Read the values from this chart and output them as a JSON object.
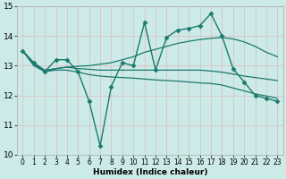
{
  "xlabel": "Humidex (Indice chaleur)",
  "xlim": [
    -0.5,
    23.5
  ],
  "ylim": [
    10,
    15
  ],
  "xticks": [
    0,
    1,
    2,
    3,
    4,
    5,
    6,
    7,
    8,
    9,
    10,
    11,
    12,
    13,
    14,
    15,
    16,
    17,
    18,
    19,
    20,
    21,
    22,
    23
  ],
  "yticks": [
    10,
    11,
    12,
    13,
    14,
    15
  ],
  "bg_color": "#cceae8",
  "grid_color": "#ddbcbc",
  "line_color": "#1a7a6e",
  "lines": [
    {
      "x": [
        0,
        1,
        2,
        3,
        4,
        5,
        6,
        7,
        8,
        9,
        10,
        11,
        12,
        13,
        14,
        15,
        16,
        17,
        18,
        19,
        20,
        21,
        22,
        23
      ],
      "y": [
        13.5,
        13.1,
        12.8,
        13.2,
        13.2,
        12.8,
        11.8,
        10.3,
        12.3,
        13.1,
        13.0,
        14.45,
        12.85,
        13.95,
        14.2,
        14.25,
        14.35,
        14.75,
        14.0,
        12.9,
        12.45,
        12.0,
        11.9,
        11.8
      ],
      "marker": "D",
      "markersize": 2.5,
      "linewidth": 1.0
    },
    {
      "x": [
        0,
        1,
        2,
        3,
        4,
        5,
        6,
        7,
        8,
        9,
        10,
        11,
        12,
        13,
        14,
        15,
        16,
        17,
        18,
        19,
        20,
        21,
        22,
        23
      ],
      "y": [
        13.5,
        13.1,
        12.85,
        12.9,
        12.95,
        12.98,
        13.0,
        13.05,
        13.1,
        13.2,
        13.3,
        13.45,
        13.55,
        13.65,
        13.75,
        13.82,
        13.88,
        13.92,
        13.95,
        13.9,
        13.8,
        13.65,
        13.45,
        13.3
      ],
      "marker": null,
      "markersize": 0,
      "linewidth": 0.9
    },
    {
      "x": [
        0,
        1,
        2,
        3,
        4,
        5,
        6,
        7,
        8,
        9,
        10,
        11,
        12,
        13,
        14,
        15,
        16,
        17,
        18,
        19,
        20,
        21,
        22,
        23
      ],
      "y": [
        13.5,
        13.05,
        12.8,
        12.9,
        12.95,
        12.9,
        12.88,
        12.85,
        12.85,
        12.85,
        12.85,
        12.85,
        12.85,
        12.85,
        12.85,
        12.85,
        12.85,
        12.82,
        12.78,
        12.72,
        12.65,
        12.6,
        12.55,
        12.5
      ],
      "marker": null,
      "markersize": 0,
      "linewidth": 0.9
    },
    {
      "x": [
        0,
        1,
        2,
        3,
        4,
        5,
        6,
        7,
        8,
        9,
        10,
        11,
        12,
        13,
        14,
        15,
        16,
        17,
        18,
        19,
        20,
        21,
        22,
        23
      ],
      "y": [
        13.5,
        13.0,
        12.8,
        12.85,
        12.85,
        12.78,
        12.7,
        12.65,
        12.62,
        12.6,
        12.58,
        12.55,
        12.52,
        12.5,
        12.48,
        12.45,
        12.42,
        12.4,
        12.35,
        12.25,
        12.15,
        12.05,
        11.98,
        11.9
      ],
      "marker": null,
      "markersize": 0,
      "linewidth": 0.9
    }
  ]
}
